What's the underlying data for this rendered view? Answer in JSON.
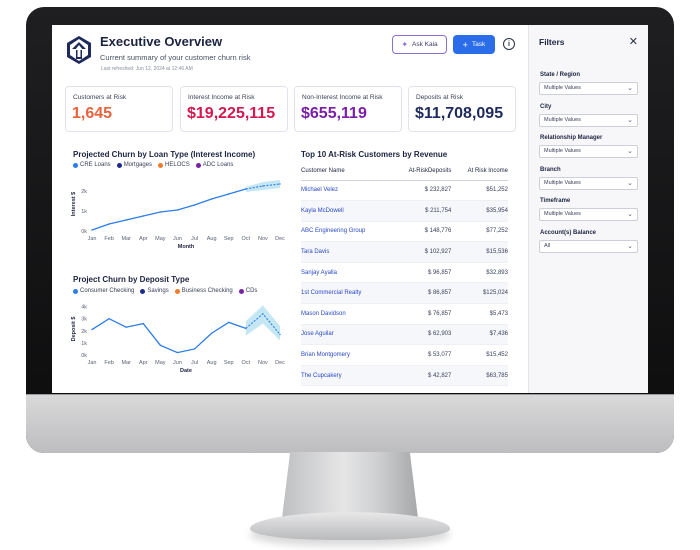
{
  "header": {
    "title": "Executive Overview",
    "subtitle": "Current summary of your customer churn risk",
    "refreshed": "Last refreshed: Jun 12, 2024 at 12:46 AM",
    "ask_label": "Ask Kaia",
    "task_label": "Task"
  },
  "colors": {
    "risk": "#e8623e",
    "income": "#d6174f",
    "nonInterest": "#7a1fa6",
    "deposits": "#1f2a5c",
    "line": "#2b7de9",
    "band": "#bfe4f3",
    "primary": "#2b6de8"
  },
  "kpis": [
    {
      "label": "Customers at Risk",
      "value": "1,645",
      "color": "#e8623e"
    },
    {
      "label": "Interest Income at Risk",
      "value": "$19,225,115",
      "color": "#d6174f"
    },
    {
      "label": "Non-Interest Income at Risk",
      "value": "$655,119",
      "color": "#7a1fa6"
    },
    {
      "label": "Deposits at Risk",
      "value": "$11,708,095",
      "color": "#1f2a5c"
    }
  ],
  "chart_data": [
    {
      "type": "line",
      "title": "Projected Churn by Loan Type (Interest Income)",
      "legend": [
        {
          "name": "CRE Loans",
          "color": "#2b7de9"
        },
        {
          "name": "Mortgages",
          "color": "#1e2a8c"
        },
        {
          "name": "HELOCS",
          "color": "#f07a2e"
        },
        {
          "name": "ADC Loans",
          "color": "#7a1fa6"
        }
      ],
      "categories": [
        "Jan",
        "Feb",
        "Mar",
        "Apr",
        "May",
        "Jun",
        "Jul",
        "Aug",
        "Sep",
        "Oct",
        "Nov",
        "Dec"
      ],
      "values": [
        0.05,
        0.35,
        0.55,
        0.75,
        0.95,
        1.05,
        1.3,
        1.6,
        1.85,
        2.1,
        2.25,
        2.35
      ],
      "band_low": [
        null,
        null,
        null,
        null,
        null,
        null,
        null,
        null,
        null,
        1.95,
        2.05,
        2.15
      ],
      "band_high": [
        null,
        null,
        null,
        null,
        null,
        null,
        null,
        null,
        null,
        2.2,
        2.45,
        2.55
      ],
      "forecast_start": 9,
      "xlabel": "Month",
      "ylabel": "Interest $",
      "yticks": [
        "0k",
        "1k",
        "2k"
      ],
      "ylim": [
        0,
        2.7
      ]
    },
    {
      "type": "line",
      "title": "Project Churn by Deposit Type",
      "legend": [
        {
          "name": "Consumer Checking",
          "color": "#2b7de9"
        },
        {
          "name": "Savings",
          "color": "#1e2a8c"
        },
        {
          "name": "Business Checking",
          "color": "#f07a2e"
        },
        {
          "name": "CDs",
          "color": "#7a1fa6"
        }
      ],
      "categories": [
        "Jan",
        "Feb",
        "Mar",
        "Apr",
        "May",
        "Jun",
        "Jul",
        "Aug",
        "Sep",
        "Oct",
        "Nov",
        "Dec"
      ],
      "values": [
        2.1,
        3.0,
        2.3,
        2.6,
        0.8,
        0.2,
        0.5,
        1.8,
        2.7,
        2.2,
        3.4,
        1.7
      ],
      "band_low": [
        null,
        null,
        null,
        null,
        null,
        null,
        null,
        null,
        null,
        1.6,
        2.6,
        1.2
      ],
      "band_high": [
        null,
        null,
        null,
        null,
        null,
        null,
        null,
        null,
        null,
        2.8,
        4.1,
        2.4
      ],
      "forecast_start": 9,
      "xlabel": "Date",
      "ylabel": "Deposit $",
      "yticks": [
        "0k",
        "1k",
        "2k",
        "3k",
        "4k"
      ],
      "ylim": [
        0,
        4.3
      ]
    }
  ],
  "table": {
    "title": "Top 10 At-Risk Customers by Revenue",
    "headers": [
      "Customer Name",
      "At-RiskDeposits",
      "At Risk Income"
    ],
    "rows": [
      {
        "name": "Michael Velez",
        "deposits": "$ 232,827",
        "income": "$51,252"
      },
      {
        "name": "Kayla McDowell",
        "deposits": "$ 211,754",
        "income": "$35,954"
      },
      {
        "name": "ABC Engineering Group",
        "deposits": "$ 148,776",
        "income": "$77,252"
      },
      {
        "name": "Tara Davis",
        "deposits": "$ 102,927",
        "income": "$15,536"
      },
      {
        "name": "Sanjay Ayalla",
        "deposits": "$ 96,857",
        "income": "$32,893"
      },
      {
        "name": "1st Commercial Realty",
        "deposits": "$ 86,857",
        "income": "$125,024"
      },
      {
        "name": "Mason Davidson",
        "deposits": "$ 76,857",
        "income": "$5,473"
      },
      {
        "name": "Jose Aguilar",
        "deposits": "$ 62,903",
        "income": "$7,436"
      },
      {
        "name": "Brian Montgomery",
        "deposits": "$ 53,077",
        "income": "$15,452"
      },
      {
        "name": "The Cupcakery",
        "deposits": "$ 42,827",
        "income": "$63,785"
      }
    ]
  },
  "filters": {
    "title": "Filters",
    "items": [
      {
        "label": "State / Region",
        "value": "Multiple Values"
      },
      {
        "label": "City",
        "value": "Multiple Values"
      },
      {
        "label": "Relationship Manager",
        "value": "Multiple Values"
      },
      {
        "label": "Branch",
        "value": "Multiple Values"
      },
      {
        "label": "Timeframe",
        "value": "Multiple Values"
      },
      {
        "label": "Account(s) Balance",
        "value": "All"
      }
    ]
  }
}
